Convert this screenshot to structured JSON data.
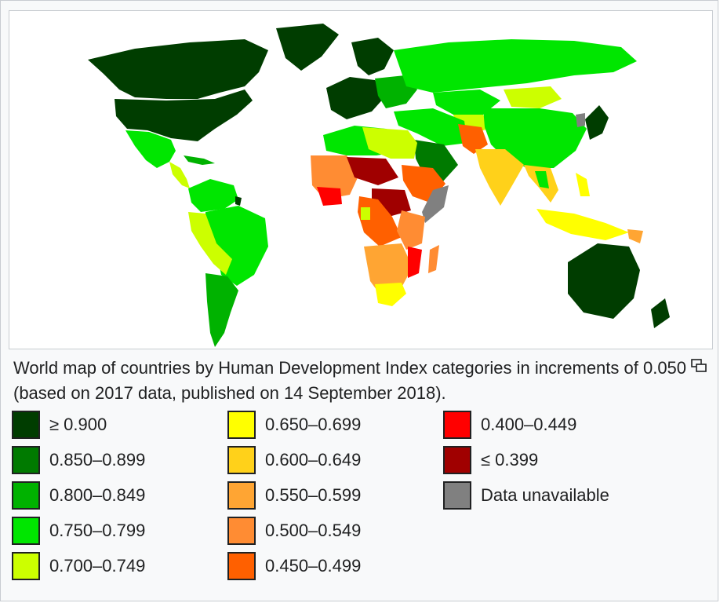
{
  "caption": "World map of countries by Human Development Index categories in increments of 0.050 (based on 2017 data, published on 14 September 2018).",
  "icons": {
    "enlarge": "magnify-clip-icon"
  },
  "colors": {
    "water": "#ffffff",
    "nodata": "#808080"
  },
  "legend": {
    "col1": [
      {
        "label": "≥ 0.900",
        "color": "#003d00"
      },
      {
        "label": "0.850–0.899",
        "color": "#007a00"
      },
      {
        "label": "0.800–0.849",
        "color": "#00b200"
      },
      {
        "label": "0.750–0.799",
        "color": "#00e600"
      },
      {
        "label": "0.700–0.749",
        "color": "#ccff00"
      }
    ],
    "col2": [
      {
        "label": "0.650–0.699",
        "color": "#ffff00"
      },
      {
        "label": "0.600–0.649",
        "color": "#ffd11a"
      },
      {
        "label": "0.550–0.599",
        "color": "#ffa533"
      },
      {
        "label": "0.500–0.549",
        "color": "#ff8c33"
      },
      {
        "label": "0.450–0.499",
        "color": "#ff6000"
      }
    ],
    "col3": [
      {
        "label": "0.400–0.449",
        "color": "#ff0000"
      },
      {
        "label": "≤ 0.399",
        "color": "#a00000"
      },
      {
        "label": "Data unavailable",
        "color": "#808080"
      }
    ]
  }
}
